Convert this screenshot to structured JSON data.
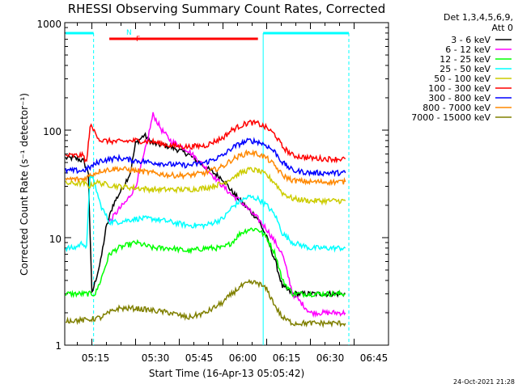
{
  "chart_data": {
    "type": "line",
    "title": "RHESSI Observing Summary Count Rates, Corrected",
    "xlabel": "Start Time (16-Apr-13 05:05:42)",
    "ylabel": "Corrected Count Rate (s⁻¹ detector⁻¹)",
    "yscale": "log",
    "ylim": [
      1,
      1000
    ],
    "xlim_min": [
      5.1,
      6.8
    ],
    "xticks": [
      "05:15",
      "05:30",
      "05:45",
      "06:00",
      "06:15",
      "06:30",
      "06:45"
    ],
    "yticks": [
      "1",
      "10",
      "100",
      "1000"
    ],
    "grid": false,
    "legend_position": "right",
    "legend_header": [
      "Det 1,3,4,5,6,9,",
      "Att 0"
    ],
    "footer": "24-Oct-2021 21:28",
    "markers": {
      "N": "N",
      "F": "F",
      "night_intervals": [
        [
          5.1,
          5.26
        ],
        [
          6.23,
          6.72
        ]
      ],
      "flare_interval": [
        5.35,
        6.2
      ]
    },
    "series": [
      {
        "name": "3 - 6 keV",
        "color": "#000000",
        "points": [
          [
            5.1,
            55
          ],
          [
            5.15,
            55
          ],
          [
            5.2,
            52
          ],
          [
            5.23,
            40
          ],
          [
            5.25,
            3
          ],
          [
            5.3,
            6
          ],
          [
            5.33,
            12
          ],
          [
            5.37,
            20
          ],
          [
            5.43,
            30
          ],
          [
            5.47,
            40
          ],
          [
            5.5,
            75
          ],
          [
            5.55,
            90
          ],
          [
            5.6,
            75
          ],
          [
            5.7,
            70
          ],
          [
            5.8,
            60
          ],
          [
            5.9,
            45
          ],
          [
            6.0,
            35
          ],
          [
            6.05,
            27
          ],
          [
            6.1,
            22
          ],
          [
            6.15,
            18
          ],
          [
            6.2,
            15
          ],
          [
            6.25,
            10
          ],
          [
            6.3,
            6
          ],
          [
            6.34,
            3.5
          ],
          [
            6.4,
            3
          ],
          [
            6.5,
            3
          ],
          [
            6.6,
            3
          ],
          [
            6.7,
            3
          ]
        ]
      },
      {
        "name": "6 - 12 keV",
        "color": "#ff00ff",
        "points": [
          [
            5.35,
            14
          ],
          [
            5.4,
            18
          ],
          [
            5.45,
            22
          ],
          [
            5.5,
            30
          ],
          [
            5.55,
            60
          ],
          [
            5.6,
            140
          ],
          [
            5.65,
            100
          ],
          [
            5.7,
            80
          ],
          [
            5.8,
            65
          ],
          [
            5.9,
            45
          ],
          [
            6.0,
            30
          ],
          [
            6.05,
            25
          ],
          [
            6.1,
            22
          ],
          [
            6.15,
            18
          ],
          [
            6.2,
            15
          ],
          [
            6.25,
            12
          ],
          [
            6.3,
            9
          ],
          [
            6.34,
            7
          ],
          [
            6.4,
            3
          ],
          [
            6.5,
            2
          ],
          [
            6.6,
            2
          ],
          [
            6.7,
            2
          ]
        ]
      },
      {
        "name": "12 - 25 keV",
        "color": "#00ff00",
        "points": [
          [
            5.1,
            3
          ],
          [
            5.2,
            3
          ],
          [
            5.27,
            3
          ],
          [
            5.3,
            4
          ],
          [
            5.35,
            7
          ],
          [
            5.4,
            8
          ],
          [
            5.5,
            9
          ],
          [
            5.6,
            8
          ],
          [
            5.7,
            8
          ],
          [
            5.8,
            7.5
          ],
          [
            5.9,
            8
          ],
          [
            6.0,
            8
          ],
          [
            6.05,
            9
          ],
          [
            6.1,
            11
          ],
          [
            6.15,
            12
          ],
          [
            6.2,
            12
          ],
          [
            6.25,
            10
          ],
          [
            6.3,
            7
          ],
          [
            6.34,
            4
          ],
          [
            6.4,
            3
          ],
          [
            6.5,
            3
          ],
          [
            6.6,
            3
          ],
          [
            6.7,
            3
          ]
        ]
      },
      {
        "name": "25 - 50 keV",
        "color": "#00ffff",
        "points": [
          [
            5.1,
            8
          ],
          [
            5.15,
            8
          ],
          [
            5.2,
            9
          ],
          [
            5.22,
            8
          ],
          [
            5.24,
            40
          ],
          [
            5.27,
            30
          ],
          [
            5.3,
            20
          ],
          [
            5.35,
            14
          ],
          [
            5.4,
            14
          ],
          [
            5.5,
            15
          ],
          [
            5.6,
            15
          ],
          [
            5.7,
            14
          ],
          [
            5.8,
            13
          ],
          [
            5.9,
            13
          ],
          [
            6.0,
            15
          ],
          [
            6.05,
            19
          ],
          [
            6.1,
            22
          ],
          [
            6.15,
            24
          ],
          [
            6.2,
            23
          ],
          [
            6.25,
            20
          ],
          [
            6.3,
            16
          ],
          [
            6.34,
            11
          ],
          [
            6.4,
            9
          ],
          [
            6.5,
            8
          ],
          [
            6.6,
            8
          ],
          [
            6.7,
            8
          ]
        ]
      },
      {
        "name": "50 - 100 keV",
        "color": "#cccc00",
        "points": [
          [
            5.1,
            32
          ],
          [
            5.2,
            32
          ],
          [
            5.24,
            30
          ],
          [
            5.27,
            33
          ],
          [
            5.3,
            32
          ],
          [
            5.4,
            30
          ],
          [
            5.5,
            29
          ],
          [
            5.6,
            28
          ],
          [
            5.7,
            28
          ],
          [
            5.8,
            28
          ],
          [
            5.9,
            29
          ],
          [
            6.0,
            32
          ],
          [
            6.05,
            36
          ],
          [
            6.1,
            40
          ],
          [
            6.15,
            43
          ],
          [
            6.2,
            42
          ],
          [
            6.25,
            38
          ],
          [
            6.3,
            32
          ],
          [
            6.34,
            26
          ],
          [
            6.4,
            23
          ],
          [
            6.5,
            22
          ],
          [
            6.6,
            22
          ],
          [
            6.7,
            22
          ]
        ]
      },
      {
        "name": "100 - 300 keV",
        "color": "#ff0000",
        "points": [
          [
            5.1,
            58
          ],
          [
            5.2,
            58
          ],
          [
            5.22,
            50
          ],
          [
            5.24,
            110
          ],
          [
            5.27,
            95
          ],
          [
            5.3,
            80
          ],
          [
            5.4,
            78
          ],
          [
            5.5,
            80
          ],
          [
            5.6,
            78
          ],
          [
            5.7,
            72
          ],
          [
            5.8,
            70
          ],
          [
            5.9,
            72
          ],
          [
            6.0,
            85
          ],
          [
            6.05,
            100
          ],
          [
            6.1,
            110
          ],
          [
            6.15,
            118
          ],
          [
            6.2,
            115
          ],
          [
            6.25,
            105
          ],
          [
            6.3,
            90
          ],
          [
            6.34,
            70
          ],
          [
            6.4,
            58
          ],
          [
            6.5,
            55
          ],
          [
            6.6,
            54
          ],
          [
            6.7,
            54
          ]
        ]
      },
      {
        "name": "300 - 800 keV",
        "color": "#0000ff",
        "points": [
          [
            5.1,
            42
          ],
          [
            5.2,
            42
          ],
          [
            5.24,
            45
          ],
          [
            5.3,
            52
          ],
          [
            5.4,
            55
          ],
          [
            5.5,
            52
          ],
          [
            5.6,
            50
          ],
          [
            5.7,
            48
          ],
          [
            5.8,
            47
          ],
          [
            5.9,
            50
          ],
          [
            6.0,
            58
          ],
          [
            6.05,
            68
          ],
          [
            6.1,
            75
          ],
          [
            6.15,
            80
          ],
          [
            6.2,
            78
          ],
          [
            6.25,
            72
          ],
          [
            6.3,
            62
          ],
          [
            6.34,
            50
          ],
          [
            6.4,
            42
          ],
          [
            6.5,
            40
          ],
          [
            6.6,
            40
          ],
          [
            6.7,
            40
          ]
        ]
      },
      {
        "name": "800 - 7000 keV",
        "color": "#ff8800",
        "points": [
          [
            5.1,
            35
          ],
          [
            5.2,
            35
          ],
          [
            5.24,
            38
          ],
          [
            5.3,
            42
          ],
          [
            5.4,
            44
          ],
          [
            5.5,
            42
          ],
          [
            5.6,
            40
          ],
          [
            5.7,
            38
          ],
          [
            5.8,
            38
          ],
          [
            5.9,
            40
          ],
          [
            6.0,
            46
          ],
          [
            6.05,
            53
          ],
          [
            6.1,
            58
          ],
          [
            6.15,
            62
          ],
          [
            6.2,
            60
          ],
          [
            6.25,
            55
          ],
          [
            6.3,
            46
          ],
          [
            6.34,
            38
          ],
          [
            6.4,
            34
          ],
          [
            6.5,
            33
          ],
          [
            6.6,
            33
          ],
          [
            6.7,
            33
          ]
        ]
      },
      {
        "name": "7000 - 15000 keV",
        "color": "#808000",
        "points": [
          [
            5.1,
            1.7
          ],
          [
            5.2,
            1.7
          ],
          [
            5.3,
            1.8
          ],
          [
            5.35,
            2.0
          ],
          [
            5.4,
            2.2
          ],
          [
            5.5,
            2.2
          ],
          [
            5.6,
            2.1
          ],
          [
            5.7,
            2.0
          ],
          [
            5.8,
            1.8
          ],
          [
            5.9,
            2.0
          ],
          [
            6.0,
            2.5
          ],
          [
            6.05,
            3.0
          ],
          [
            6.1,
            3.5
          ],
          [
            6.15,
            3.8
          ],
          [
            6.2,
            3.8
          ],
          [
            6.25,
            3.3
          ],
          [
            6.3,
            2.3
          ],
          [
            6.34,
            1.8
          ],
          [
            6.4,
            1.6
          ],
          [
            6.5,
            1.6
          ],
          [
            6.6,
            1.6
          ],
          [
            6.7,
            1.6
          ]
        ]
      }
    ]
  }
}
